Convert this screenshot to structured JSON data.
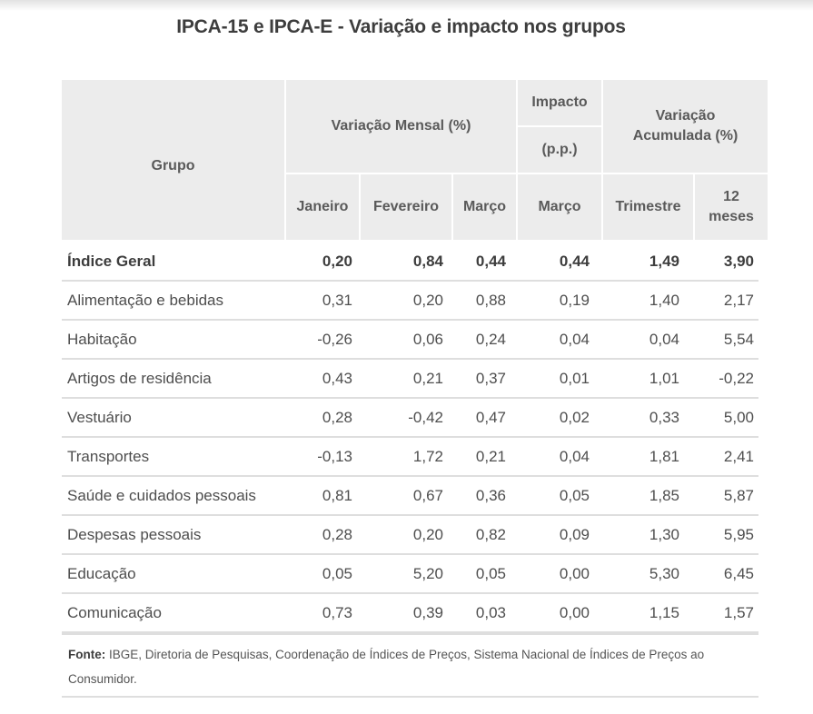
{
  "title": "IPCA-15 e IPCA-E - Variação e impacto nos grupos",
  "table": {
    "headers": {
      "grupo": "Grupo",
      "variacao_mensal": "Variação Mensal (%)",
      "impacto_top": "Impacto",
      "impacto_unit": "(p.p.)",
      "variacao_acumulada": "Variação Acumulada (%)",
      "sub": [
        "Janeiro",
        "Fevereiro",
        "Março",
        "Março",
        "Trimestre",
        "12 meses"
      ]
    },
    "rows": [
      {
        "grupo": "Índice Geral",
        "jan": "0,20",
        "fev": "0,84",
        "mar": "0,44",
        "impacto_mar": "0,44",
        "trimestre": "1,49",
        "doze_meses": "3,90",
        "bold": true
      },
      {
        "grupo": "Alimentação e bebidas",
        "jan": "0,31",
        "fev": "0,20",
        "mar": "0,88",
        "impacto_mar": "0,19",
        "trimestre": "1,40",
        "doze_meses": "2,17"
      },
      {
        "grupo": "Habitação",
        "jan": "-0,26",
        "fev": "0,06",
        "mar": "0,24",
        "impacto_mar": "0,04",
        "trimestre": "0,04",
        "doze_meses": "5,54"
      },
      {
        "grupo": "Artigos de residência",
        "jan": "0,43",
        "fev": "0,21",
        "mar": "0,37",
        "impacto_mar": "0,01",
        "trimestre": "1,01",
        "doze_meses": "-0,22"
      },
      {
        "grupo": "Vestuário",
        "jan": "0,28",
        "fev": "-0,42",
        "mar": "0,47",
        "impacto_mar": "0,02",
        "trimestre": "0,33",
        "doze_meses": "5,00"
      },
      {
        "grupo": "Transportes",
        "jan": "-0,13",
        "fev": "1,72",
        "mar": "0,21",
        "impacto_mar": "0,04",
        "trimestre": "1,81",
        "doze_meses": "2,41"
      },
      {
        "grupo": "Saúde e cuidados pessoais",
        "jan": "0,81",
        "fev": "0,67",
        "mar": "0,36",
        "impacto_mar": "0,05",
        "trimestre": "1,85",
        "doze_meses": "5,87"
      },
      {
        "grupo": "Despesas pessoais",
        "jan": "0,28",
        "fev": "0,20",
        "mar": "0,82",
        "impacto_mar": "0,09",
        "trimestre": "1,30",
        "doze_meses": "5,95"
      },
      {
        "grupo": "Educação",
        "jan": "0,05",
        "fev": "5,20",
        "mar": "0,05",
        "impacto_mar": "0,00",
        "trimestre": "5,30",
        "doze_meses": "6,45"
      },
      {
        "grupo": "Comunicação",
        "jan": "0,73",
        "fev": "0,39",
        "mar": "0,03",
        "impacto_mar": "0,00",
        "trimestre": "1,15",
        "doze_meses": "1,57"
      }
    ]
  },
  "footer": {
    "label": "Fonte:",
    "text": " IBGE, Diretoria de Pesquisas, Coordenação de Índices de Preços, Sistema Nacional de Índices de Preços ao Consumidor."
  }
}
